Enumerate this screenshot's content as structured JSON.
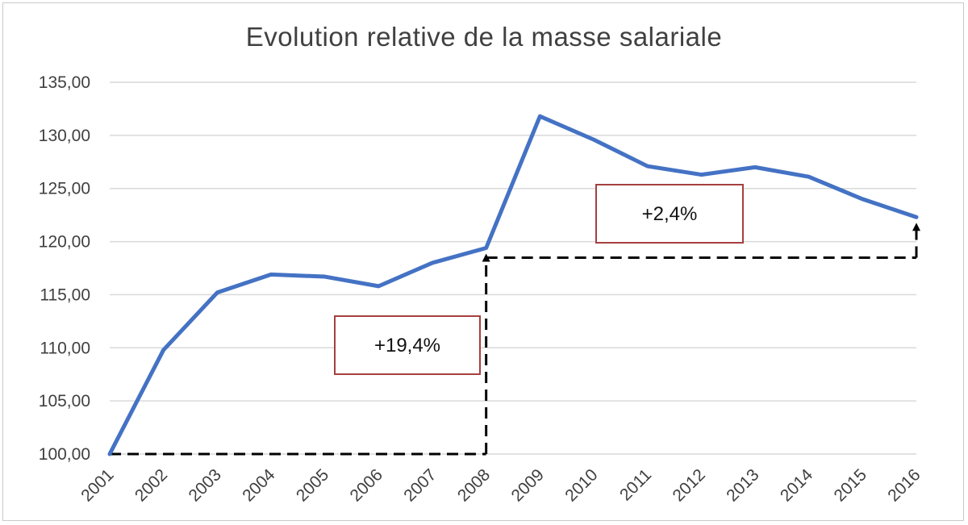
{
  "chart_data": {
    "type": "line",
    "title": "Evolution relative de la masse salariale",
    "xlabel": "",
    "ylabel": "",
    "ylim": [
      100,
      135
    ],
    "grid": true,
    "legend": "none",
    "y_tick_labels": [
      "100,00",
      "105,00",
      "110,00",
      "115,00",
      "120,00",
      "125,00",
      "130,00",
      "135,00"
    ],
    "y_tick_values": [
      100,
      105,
      110,
      115,
      120,
      125,
      130,
      135
    ],
    "categories": [
      "2001",
      "2002",
      "2003",
      "2004",
      "2005",
      "2006",
      "2007",
      "2008",
      "2009",
      "2010",
      "2011",
      "2012",
      "2013",
      "2014",
      "2015",
      "2016"
    ],
    "series": [
      {
        "values": [
          100.0,
          109.8,
          115.2,
          116.9,
          116.7,
          115.8,
          118.0,
          119.4,
          131.8,
          129.6,
          127.1,
          126.3,
          127.0,
          126.1,
          124.0,
          122.3
        ]
      }
    ],
    "colors": {
      "line": "#4472C4",
      "gridline": "#D9D9D9",
      "annotation_box_border": "#A5403F",
      "dashed_lines": "#000000"
    },
    "annotations": [
      {
        "label": "+19,4%",
        "from": {
          "x": "2001",
          "y": 100.0
        },
        "corner": "2008",
        "to": {
          "x": "2008",
          "y": 119.4
        }
      },
      {
        "label": "+2,4%",
        "from": {
          "x": "2008",
          "y": 119.4
        },
        "corner": "2016",
        "to": {
          "x": "2016",
          "y": 122.3
        }
      }
    ]
  }
}
